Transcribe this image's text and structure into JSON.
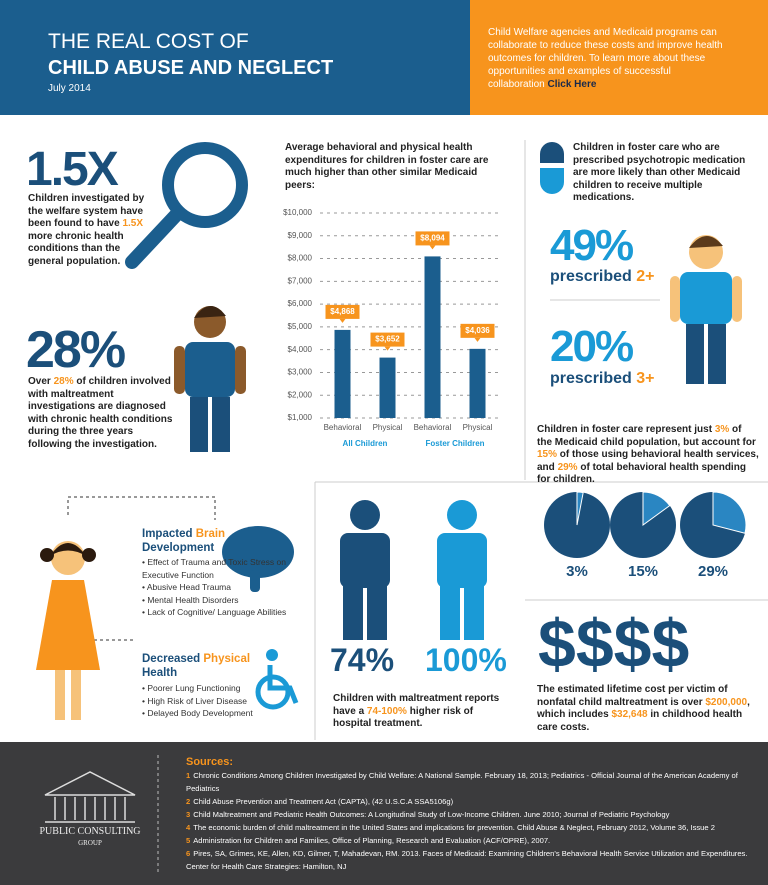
{
  "header": {
    "title_line1": "THE REAL COST OF",
    "title_line2": "CHILD ABUSE AND NEGLECT",
    "date": "July 2014",
    "promo": "Child Welfare agencies and Medicaid programs can collaborate to reduce these costs and improve health outcomes for children. To learn more about these opportunities and examples of successful collaboration",
    "link": "Click Here"
  },
  "stat_chronic": {
    "big": "1.5X",
    "text": [
      "Children investigated by the welfare system have been found to have ",
      "1.5X",
      " more chronic health conditions than the general population."
    ]
  },
  "stat_diagnosed": {
    "big": "28%",
    "text": [
      "Over ",
      "28%",
      " of children involved with maltreatment investigations are diagnosed with chronic health conditions during the three years following the investigation."
    ]
  },
  "chart_data": {
    "type": "bar",
    "title": "Average behavioral and physical health expenditures for children in foster care are much higher than other similar Medicaid peers:",
    "categories": [
      "Behavioral",
      "Physical",
      "Behavioral",
      "Physical"
    ],
    "groups": [
      "All Children",
      "Foster Children"
    ],
    "values": [
      4868,
      3652,
      8094,
      4036
    ],
    "value_labels": [
      "$4,868",
      "$3,652",
      "$8,094",
      "$4,036"
    ],
    "color": "#1b5e8e",
    "label_color": "#f7941d",
    "ylim": [
      1000,
      10000
    ],
    "yticks": [
      {
        "value": 1000,
        "label": "$1,000"
      },
      {
        "value": 2000,
        "label": "$2,000"
      },
      {
        "value": 3000,
        "label": "$3,000"
      },
      {
        "value": 4000,
        "label": "$4,000"
      },
      {
        "value": 5000,
        "label": "$5,000"
      },
      {
        "value": 6000,
        "label": "$6,000"
      },
      {
        "value": 7000,
        "label": "$7,000"
      },
      {
        "value": 8000,
        "label": "$8,000"
      },
      {
        "value": 9000,
        "label": "$9,000"
      },
      {
        "value": 10000,
        "label": "$10,000"
      }
    ],
    "grid": true
  },
  "medication": {
    "text": "Children in foster care who are prescribed psychotropic medication are more likely than other Medicaid children to receive multiple medications.",
    "stat1": {
      "big": "49%",
      "label": "prescribed",
      "count": "2+"
    },
    "stat2": {
      "big": "20%",
      "label": "prescribed",
      "count": "3+"
    }
  },
  "share": {
    "text": [
      "Children in foster care represent just ",
      "3%",
      " of the Medicaid child population, but account for ",
      "15%",
      " of those using behavioral health services, and ",
      "29%",
      " of total behavioral health spending for children."
    ],
    "pies": {
      "type": "pie",
      "values": [
        3,
        15,
        29
      ],
      "value_labels": [
        "3%",
        "15%",
        "29%"
      ],
      "color": "#1b4f7a",
      "slice_color": "#2a86c2"
    }
  },
  "brain": {
    "heading": [
      "Impacted ",
      "Brain",
      " Development"
    ],
    "items": [
      "Effect of Trauma and Toxic Stress on Executive Function",
      "Abusive Head Trauma",
      "Mental Health Disorders",
      "Lack of Cognitive/ Language Abilities"
    ]
  },
  "physical": {
    "heading": [
      "Decreased ",
      "Physical",
      " Health"
    ],
    "items": [
      "Poorer Lung Functioning",
      "High Risk of Liver Disease",
      "Delayed Body Development"
    ]
  },
  "hospital": {
    "stat1": "74%",
    "stat2": "100%",
    "text": [
      "Children with maltreatment reports have a ",
      "74-100%",
      " higher risk of hospital treatment."
    ]
  },
  "cost": {
    "big": "$$$$",
    "text": [
      "The estimated lifetime cost per victim of nonfatal child maltreatment is over ",
      "$200,000",
      ", which includes ",
      "$32,648",
      " in childhood health care costs."
    ]
  },
  "sources": {
    "title": "Sources:",
    "items": [
      {
        "num": 1,
        "text": "Chronic Conditions Among Children Investigated by Child Welfare: A National Sample. February 18, 2013; Pediatrics - Official Journal of the American Academy of Pediatrics"
      },
      {
        "num": 2,
        "text": "Child Abuse Prevention and Treatment Act (CAPTA), (42 U.S.C.A SSA5106g)"
      },
      {
        "num": 3,
        "text": "Child Maltreatment and Pediatric Health Outcomes: A Longitudinal Study of Low-Income Children. June 2010; Journal of Pediatric Psychology"
      },
      {
        "num": 4,
        "text": "The economic burden of child maltreatment in the United States and implications for prevention. Child Abuse & Neglect, February 2012, Volume 36, Issue 2"
      },
      {
        "num": 5,
        "text": "Administration for Children and Families, Office of Planning, Research and Evaluation (ACF/OPRE), 2007."
      },
      {
        "num": 6,
        "text": "Pires, SA, Grimes, KE, Allen, KD, Gilmer, T, Mahadevan, RM. 2013. Faces of Medicaid: Examining Children's Behavioral Health Service Utilization and Expenditures. Center for Health Care Strategies: Hamilton, NJ"
      }
    ]
  },
  "logo": {
    "line1": "PUBLIC CONSULTING",
    "line2": "GROUP"
  }
}
